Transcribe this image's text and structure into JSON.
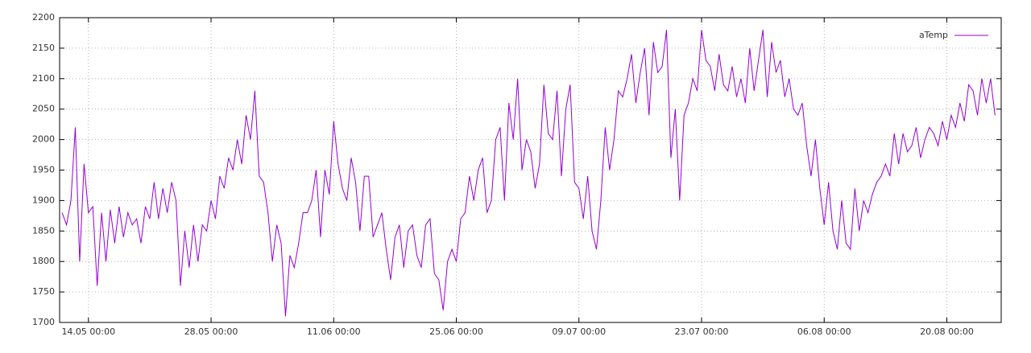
{
  "chart_data": {
    "type": "line",
    "x": [
      "11.05 00:00",
      "11.05 12:00",
      "12.05 00:00",
      "12.05 12:00",
      "13.05 00:00",
      "13.05 12:00",
      "14.05 00:00",
      "14.05 12:00",
      "15.05 00:00",
      "15.05 12:00",
      "16.05 00:00",
      "16.05 12:00",
      "17.05 00:00",
      "17.05 12:00",
      "18.05 00:00",
      "18.05 12:00",
      "19.05 00:00",
      "19.05 12:00",
      "20.05 00:00",
      "20.05 12:00",
      "21.05 00:00",
      "21.05 12:00",
      "22.05 00:00",
      "22.05 12:00",
      "23.05 00:00",
      "23.05 12:00",
      "24.05 00:00",
      "24.05 12:00",
      "25.05 00:00",
      "25.05 12:00",
      "26.05 00:00",
      "26.05 12:00",
      "27.05 00:00",
      "27.05 12:00",
      "28.05 00:00",
      "28.05 12:00",
      "29.05 00:00",
      "29.05 12:00",
      "30.05 00:00",
      "30.05 12:00",
      "31.05 00:00",
      "31.05 12:00",
      "01.06 00:00",
      "01.06 12:00",
      "02.06 00:00",
      "02.06 12:00",
      "03.06 00:00",
      "03.06 12:00",
      "04.06 00:00",
      "04.06 12:00",
      "05.06 00:00",
      "05.06 12:00",
      "06.06 00:00",
      "06.06 12:00",
      "07.06 00:00",
      "07.06 12:00",
      "08.06 00:00",
      "08.06 12:00",
      "09.06 00:00",
      "09.06 12:00",
      "10.06 00:00",
      "10.06 12:00",
      "11.06 00:00",
      "11.06 12:00",
      "12.06 00:00",
      "12.06 12:00",
      "13.06 00:00",
      "13.06 12:00",
      "14.06 00:00",
      "14.06 12:00",
      "15.06 00:00",
      "15.06 12:00",
      "16.06 00:00",
      "16.06 12:00",
      "17.06 00:00",
      "17.06 12:00",
      "18.06 00:00",
      "18.06 12:00",
      "19.06 00:00",
      "19.06 12:00",
      "20.06 00:00",
      "20.06 12:00",
      "21.06 00:00",
      "21.06 12:00",
      "22.06 00:00",
      "22.06 12:00",
      "23.06 00:00",
      "23.06 12:00",
      "24.06 00:00",
      "24.06 12:00",
      "25.06 00:00",
      "25.06 12:00",
      "26.06 00:00",
      "26.06 12:00",
      "27.06 00:00",
      "27.06 12:00",
      "28.06 00:00",
      "28.06 12:00",
      "29.06 00:00",
      "29.06 12:00",
      "30.06 00:00",
      "30.06 12:00",
      "01.07 00:00",
      "01.07 12:00",
      "02.07 00:00",
      "02.07 12:00",
      "03.07 00:00",
      "03.07 12:00",
      "04.07 00:00",
      "04.07 12:00",
      "05.07 00:00",
      "05.07 12:00",
      "06.07 00:00",
      "06.07 12:00",
      "07.07 00:00",
      "07.07 12:00",
      "08.07 00:00",
      "08.07 12:00",
      "09.07 00:00",
      "09.07 12:00",
      "10.07 00:00",
      "10.07 12:00",
      "11.07 00:00",
      "11.07 12:00",
      "12.07 00:00",
      "12.07 12:00",
      "13.07 00:00",
      "13.07 12:00",
      "14.07 00:00",
      "14.07 12:00",
      "15.07 00:00",
      "15.07 12:00",
      "16.07 00:00",
      "16.07 12:00",
      "17.07 00:00",
      "17.07 12:00",
      "18.07 00:00",
      "18.07 12:00",
      "19.07 00:00",
      "19.07 12:00",
      "20.07 00:00",
      "20.07 12:00",
      "21.07 00:00",
      "21.07 12:00",
      "22.07 00:00",
      "22.07 12:00",
      "23.07 00:00",
      "23.07 12:00",
      "24.07 00:00",
      "24.07 12:00",
      "25.07 00:00",
      "25.07 12:00",
      "26.07 00:00",
      "26.07 12:00",
      "27.07 00:00",
      "27.07 12:00",
      "28.07 00:00",
      "28.07 12:00",
      "29.07 00:00",
      "29.07 12:00",
      "30.07 00:00",
      "30.07 12:00",
      "31.07 00:00",
      "31.07 12:00",
      "01.08 00:00",
      "01.08 12:00",
      "02.08 00:00",
      "02.08 12:00",
      "03.08 00:00",
      "03.08 12:00",
      "04.08 00:00",
      "04.08 12:00",
      "05.08 00:00",
      "05.08 12:00",
      "06.08 00:00",
      "06.08 12:00",
      "07.08 00:00",
      "07.08 12:00",
      "08.08 00:00",
      "08.08 12:00",
      "09.08 00:00",
      "09.08 12:00",
      "10.08 00:00",
      "10.08 12:00",
      "11.08 00:00",
      "11.08 12:00",
      "12.08 00:00",
      "12.08 12:00",
      "13.08 00:00",
      "13.08 12:00",
      "14.08 00:00",
      "14.08 12:00",
      "15.08 00:00",
      "15.08 12:00",
      "16.08 00:00",
      "16.08 12:00",
      "17.08 00:00",
      "17.08 12:00",
      "18.08 00:00",
      "18.08 12:00",
      "19.08 00:00",
      "19.08 12:00",
      "20.08 00:00",
      "20.08 12:00",
      "21.08 00:00",
      "21.08 12:00",
      "22.08 00:00",
      "22.08 12:00",
      "23.08 00:00",
      "23.08 12:00",
      "24.08 00:00",
      "24.08 12:00",
      "25.08 00:00",
      "25.08 12:00"
    ],
    "series": [
      {
        "name": "aTemp",
        "color": "#9400d3",
        "values": [
          1880,
          1860,
          1900,
          2020,
          1800,
          1960,
          1880,
          1890,
          1760,
          1880,
          1800,
          1885,
          1830,
          1890,
          1840,
          1880,
          1860,
          1870,
          1830,
          1890,
          1870,
          1930,
          1870,
          1920,
          1880,
          1930,
          1900,
          1760,
          1850,
          1790,
          1860,
          1800,
          1860,
          1850,
          1900,
          1870,
          1940,
          1920,
          1970,
          1950,
          2000,
          1960,
          2040,
          2000,
          2080,
          1940,
          1930,
          1880,
          1800,
          1860,
          1830,
          1710,
          1810,
          1790,
          1830,
          1880,
          1880,
          1900,
          1950,
          1840,
          1950,
          1910,
          2030,
          1960,
          1920,
          1900,
          1970,
          1930,
          1850,
          1940,
          1940,
          1840,
          1860,
          1880,
          1820,
          1770,
          1840,
          1860,
          1790,
          1850,
          1860,
          1810,
          1790,
          1860,
          1870,
          1780,
          1770,
          1720,
          1800,
          1820,
          1800,
          1870,
          1880,
          1940,
          1900,
          1950,
          1970,
          1880,
          1900,
          2000,
          2020,
          1900,
          2060,
          2000,
          2100,
          1950,
          2000,
          1980,
          1920,
          1960,
          2090,
          2010,
          2000,
          2080,
          1940,
          2050,
          2090,
          1930,
          1920,
          1870,
          1940,
          1850,
          1820,
          1900,
          2020,
          1950,
          2000,
          2080,
          2070,
          2100,
          2140,
          2060,
          2110,
          2150,
          2040,
          2160,
          2110,
          2120,
          2180,
          1970,
          2050,
          1900,
          2040,
          2060,
          2100,
          2080,
          2180,
          2130,
          2120,
          2080,
          2140,
          2090,
          2080,
          2120,
          2070,
          2100,
          2060,
          2150,
          2080,
          2130,
          2180,
          2070,
          2160,
          2110,
          2130,
          2070,
          2100,
          2050,
          2040,
          2060,
          1990,
          1940,
          2000,
          1920,
          1860,
          1930,
          1850,
          1820,
          1900,
          1830,
          1820,
          1920,
          1850,
          1900,
          1880,
          1910,
          1930,
          1940,
          1960,
          1940,
          2010,
          1960,
          2010,
          1980,
          1990,
          2020,
          1970,
          2000,
          2020,
          2010,
          1990,
          2030,
          2000,
          2040,
          2020,
          2060,
          2030,
          2090,
          2080,
          2040,
          2100,
          2060,
          2100,
          2040
        ]
      }
    ],
    "xlim": [
      "10.05 17:00",
      "26.08 05:00"
    ],
    "xticks": [
      "14.05 00:00",
      "28.05 00:00",
      "11.06 00:00",
      "25.06 00:00",
      "09.07 00:00",
      "23.07 00:00",
      "06.08 00:00",
      "20.08 00:00"
    ],
    "ylim": [
      1700,
      2200
    ],
    "yticks": [
      1700,
      1750,
      1800,
      1850,
      1900,
      1950,
      2000,
      2050,
      2100,
      2150,
      2200
    ],
    "grid": true,
    "legend": "top-right"
  }
}
